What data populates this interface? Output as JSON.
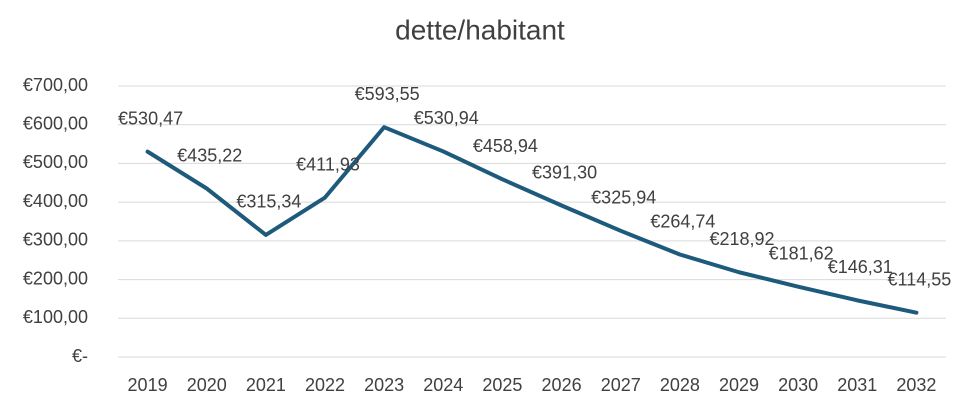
{
  "chart_data": {
    "type": "line",
    "title": "dette/habitant",
    "categories": [
      "2019",
      "2020",
      "2021",
      "2022",
      "2023",
      "2024",
      "2025",
      "2026",
      "2027",
      "2028",
      "2029",
      "2030",
      "2031",
      "2032"
    ],
    "series": [
      {
        "name": "dette/habitant",
        "color": "#1d5a7b",
        "values": [
          530.47,
          435.22,
          315.34,
          411.93,
          593.55,
          530.94,
          458.94,
          391.3,
          325.94,
          264.74,
          218.92,
          181.62,
          146.31,
          114.55
        ],
        "value_labels": [
          "€530,47",
          "€435,22",
          "€315,34",
          "€411,93",
          "€593,55",
          "€530,94",
          "€458,94",
          "€391,30",
          "€325,94",
          "€264,74",
          "€218,92",
          "€181,62",
          "€146,31",
          "€114,55"
        ]
      }
    ],
    "ylim": [
      0,
      700
    ],
    "yticks": [
      {
        "value": 0,
        "label": "€-"
      },
      {
        "value": 100,
        "label": "€100,00"
      },
      {
        "value": 200,
        "label": "€200,00"
      },
      {
        "value": 300,
        "label": "€300,00"
      },
      {
        "value": 400,
        "label": "€400,00"
      },
      {
        "value": 500,
        "label": "€500,00"
      },
      {
        "value": 600,
        "label": "€600,00"
      },
      {
        "value": 700,
        "label": "€700,00"
      }
    ],
    "grid": true
  }
}
